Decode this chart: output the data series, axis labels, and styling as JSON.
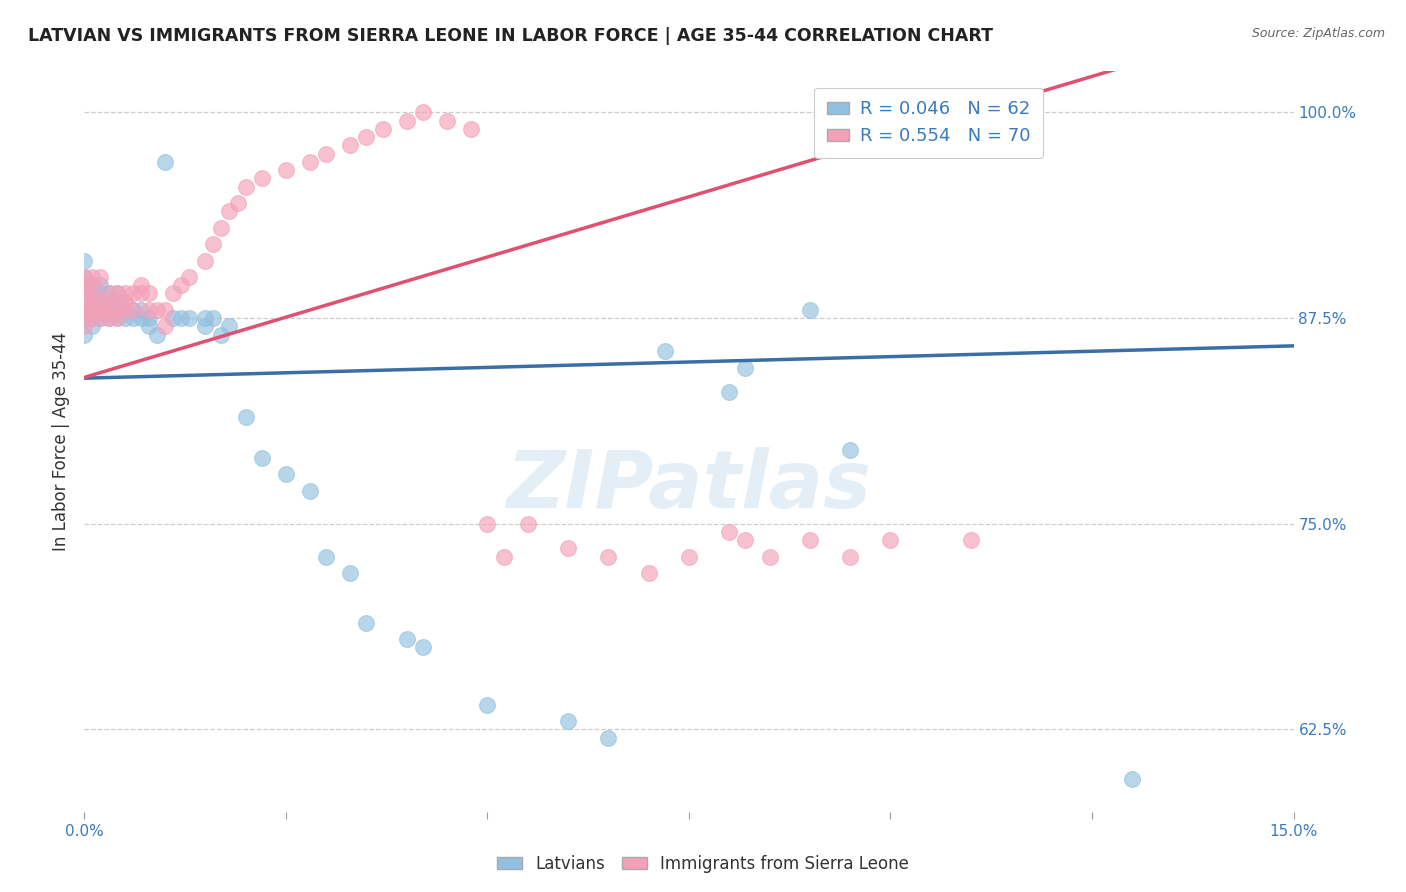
{
  "title": "LATVIAN VS IMMIGRANTS FROM SIERRA LEONE IN LABOR FORCE | AGE 35-44 CORRELATION CHART",
  "source": "Source: ZipAtlas.com",
  "ylabel": "In Labor Force | Age 35-44",
  "xlim": [
    0.0,
    0.15
  ],
  "ylim": [
    0.575,
    1.025
  ],
  "xticks": [
    0.0,
    0.025,
    0.05,
    0.075,
    0.1,
    0.125,
    0.15
  ],
  "xticklabels": [
    "0.0%",
    "",
    "",
    "",
    "",
    "",
    "15.0%"
  ],
  "ytick_positions": [
    0.625,
    0.75,
    0.875,
    1.0
  ],
  "yticklabels": [
    "62.5%",
    "75.0%",
    "87.5%",
    "100.0%"
  ],
  "latvian_color": "#92c0e0",
  "sierra_leone_color": "#f4a0b8",
  "trend_latvian_color": "#3a6ea5",
  "trend_sierra_leone_color": "#e05070",
  "R_latvian": 0.046,
  "N_latvian": 62,
  "R_sierra_leone": 0.554,
  "N_sierra_leone": 70,
  "watermark": "ZIPatlas",
  "legend_label_latvian": "Latvians",
  "legend_label_sierra_leone": "Immigrants from Sierra Leone",
  "latvian_x": [
    0.0,
    0.0,
    0.0,
    0.0,
    0.0,
    0.0,
    0.001,
    0.001,
    0.001,
    0.001,
    0.001,
    0.001,
    0.002,
    0.002,
    0.002,
    0.002,
    0.002,
    0.003,
    0.003,
    0.003,
    0.003,
    0.004,
    0.004,
    0.004,
    0.004,
    0.005,
    0.005,
    0.005,
    0.006,
    0.006,
    0.007,
    0.007,
    0.008,
    0.008,
    0.009,
    0.01,
    0.011,
    0.012,
    0.013,
    0.015,
    0.015,
    0.016,
    0.017,
    0.018,
    0.02,
    0.022,
    0.025,
    0.028,
    0.03,
    0.033,
    0.035,
    0.04,
    0.042,
    0.05,
    0.06,
    0.065,
    0.072,
    0.08,
    0.082,
    0.09,
    0.095,
    0.13
  ],
  "latvian_y": [
    0.88,
    0.89,
    0.9,
    0.91,
    0.875,
    0.865,
    0.87,
    0.875,
    0.88,
    0.885,
    0.89,
    0.895,
    0.875,
    0.88,
    0.885,
    0.89,
    0.895,
    0.875,
    0.88,
    0.885,
    0.89,
    0.875,
    0.88,
    0.885,
    0.89,
    0.875,
    0.88,
    0.885,
    0.875,
    0.88,
    0.875,
    0.88,
    0.87,
    0.875,
    0.865,
    0.97,
    0.875,
    0.875,
    0.875,
    0.87,
    0.875,
    0.875,
    0.865,
    0.87,
    0.815,
    0.79,
    0.78,
    0.77,
    0.73,
    0.72,
    0.69,
    0.68,
    0.675,
    0.64,
    0.63,
    0.62,
    0.855,
    0.83,
    0.845,
    0.88,
    0.795,
    0.595
  ],
  "sierra_leone_x": [
    0.0,
    0.0,
    0.0,
    0.0,
    0.0,
    0.0,
    0.0,
    0.001,
    0.001,
    0.001,
    0.001,
    0.001,
    0.001,
    0.002,
    0.002,
    0.002,
    0.002,
    0.003,
    0.003,
    0.003,
    0.003,
    0.004,
    0.004,
    0.004,
    0.005,
    0.005,
    0.005,
    0.006,
    0.006,
    0.007,
    0.007,
    0.008,
    0.008,
    0.009,
    0.01,
    0.01,
    0.011,
    0.012,
    0.013,
    0.015,
    0.016,
    0.017,
    0.018,
    0.019,
    0.02,
    0.022,
    0.025,
    0.028,
    0.03,
    0.033,
    0.035,
    0.037,
    0.04,
    0.042,
    0.045,
    0.048,
    0.05,
    0.052,
    0.055,
    0.06,
    0.065,
    0.07,
    0.075,
    0.08,
    0.082,
    0.085,
    0.09,
    0.095,
    0.1,
    0.11
  ],
  "sierra_leone_y": [
    0.87,
    0.875,
    0.88,
    0.885,
    0.89,
    0.895,
    0.9,
    0.875,
    0.88,
    0.885,
    0.89,
    0.895,
    0.9,
    0.875,
    0.88,
    0.885,
    0.9,
    0.875,
    0.88,
    0.885,
    0.89,
    0.875,
    0.88,
    0.89,
    0.88,
    0.885,
    0.89,
    0.88,
    0.89,
    0.89,
    0.895,
    0.88,
    0.89,
    0.88,
    0.87,
    0.88,
    0.89,
    0.895,
    0.9,
    0.91,
    0.92,
    0.93,
    0.94,
    0.945,
    0.955,
    0.96,
    0.965,
    0.97,
    0.975,
    0.98,
    0.985,
    0.99,
    0.995,
    1.0,
    0.995,
    0.99,
    0.75,
    0.73,
    0.75,
    0.735,
    0.73,
    0.72,
    0.73,
    0.745,
    0.74,
    0.73,
    0.74,
    0.73,
    0.74,
    0.74
  ]
}
